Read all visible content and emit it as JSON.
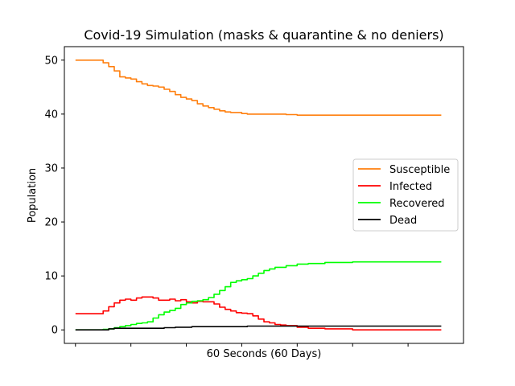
{
  "chart_data": {
    "type": "line",
    "title": "Covid-19 Simulation (masks & quarantine & no deniers)",
    "xlabel": "60 Seconds (60 Days)",
    "ylabel": "Population",
    "xlim": [
      -2,
      70
    ],
    "ylim": [
      -2.5,
      52.5
    ],
    "yticks": [
      0,
      10,
      20,
      30,
      40,
      50
    ],
    "xticks": [
      0,
      10,
      20,
      30,
      40,
      50,
      60
    ],
    "legend": "center-right",
    "series": [
      {
        "name": "Susceptible",
        "color": "#ff7f0e",
        "points": [
          [
            0,
            50
          ],
          [
            4,
            50
          ],
          [
            5,
            49.5
          ],
          [
            6,
            48.8
          ],
          [
            7,
            48
          ],
          [
            8,
            46.9
          ],
          [
            9,
            46.7
          ],
          [
            10,
            46.5
          ],
          [
            11,
            46
          ],
          [
            12,
            45.6
          ],
          [
            13,
            45.3
          ],
          [
            14,
            45.2
          ],
          [
            15,
            45
          ],
          [
            16,
            44.6
          ],
          [
            17,
            44.2
          ],
          [
            18,
            43.6
          ],
          [
            19,
            43.1
          ],
          [
            20,
            42.8
          ],
          [
            21,
            42.5
          ],
          [
            22,
            41.9
          ],
          [
            23,
            41.5
          ],
          [
            24,
            41.2
          ],
          [
            25,
            40.9
          ],
          [
            26,
            40.6
          ],
          [
            27,
            40.4
          ],
          [
            28,
            40.3
          ],
          [
            29,
            40.3
          ],
          [
            30,
            40.1
          ],
          [
            31,
            40
          ],
          [
            32,
            40
          ],
          [
            35,
            40
          ],
          [
            38,
            39.9
          ],
          [
            40,
            39.8
          ],
          [
            45,
            39.8
          ],
          [
            50,
            39.8
          ],
          [
            60,
            39.8
          ],
          [
            66,
            39.8
          ]
        ]
      },
      {
        "name": "Infected",
        "color": "#ff0000",
        "points": [
          [
            0,
            3
          ],
          [
            4,
            3
          ],
          [
            5,
            3.5
          ],
          [
            6,
            4.3
          ],
          [
            7,
            5
          ],
          [
            8,
            5.5
          ],
          [
            9,
            5.7
          ],
          [
            10,
            5.5
          ],
          [
            11,
            5.9
          ],
          [
            12,
            6.1
          ],
          [
            13,
            6.1
          ],
          [
            14,
            5.9
          ],
          [
            15,
            5.5
          ],
          [
            16,
            5.5
          ],
          [
            17,
            5.7
          ],
          [
            18,
            5.4
          ],
          [
            19,
            5.6
          ],
          [
            20,
            5.2
          ],
          [
            21,
            5
          ],
          [
            22,
            5.3
          ],
          [
            23,
            5.2
          ],
          [
            24,
            5.2
          ],
          [
            25,
            4.8
          ],
          [
            26,
            4.2
          ],
          [
            27,
            3.8
          ],
          [
            28,
            3.5
          ],
          [
            29,
            3.2
          ],
          [
            30,
            3.1
          ],
          [
            31,
            3
          ],
          [
            32,
            2.6
          ],
          [
            33,
            2
          ],
          [
            34,
            1.5
          ],
          [
            35,
            1.3
          ],
          [
            36,
            1
          ],
          [
            37,
            0.9
          ],
          [
            38,
            0.8
          ],
          [
            40,
            0.5
          ],
          [
            42,
            0.3
          ],
          [
            45,
            0.2
          ],
          [
            48,
            0.2
          ],
          [
            50,
            0
          ],
          [
            60,
            0
          ],
          [
            66,
            0
          ]
        ]
      },
      {
        "name": "Recovered",
        "color": "#00ff00",
        "points": [
          [
            0,
            0
          ],
          [
            4,
            0
          ],
          [
            5,
            0.1
          ],
          [
            6,
            0.2
          ],
          [
            7,
            0.4
          ],
          [
            8,
            0.6
          ],
          [
            9,
            0.8
          ],
          [
            10,
            1
          ],
          [
            11,
            1.2
          ],
          [
            12,
            1.3
          ],
          [
            13,
            1.5
          ],
          [
            14,
            2.2
          ],
          [
            15,
            2.8
          ],
          [
            16,
            3.3
          ],
          [
            17,
            3.6
          ],
          [
            18,
            4
          ],
          [
            19,
            4.7
          ],
          [
            20,
            5
          ],
          [
            21,
            5.3
          ],
          [
            22,
            5.4
          ],
          [
            23,
            5.6
          ],
          [
            24,
            6
          ],
          [
            25,
            6.6
          ],
          [
            26,
            7.3
          ],
          [
            27,
            8
          ],
          [
            28,
            8.8
          ],
          [
            29,
            9.1
          ],
          [
            30,
            9.3
          ],
          [
            31,
            9.5
          ],
          [
            32,
            10
          ],
          [
            33,
            10.5
          ],
          [
            34,
            11
          ],
          [
            35,
            11.3
          ],
          [
            36,
            11.6
          ],
          [
            38,
            11.9
          ],
          [
            40,
            12.2
          ],
          [
            42,
            12.3
          ],
          [
            45,
            12.5
          ],
          [
            50,
            12.6
          ],
          [
            55,
            12.6
          ],
          [
            60,
            12.6
          ],
          [
            66,
            12.6
          ]
        ]
      },
      {
        "name": "Dead",
        "color": "#000000",
        "points": [
          [
            0,
            0
          ],
          [
            4,
            0
          ],
          [
            6,
            0.2
          ],
          [
            7,
            0.3
          ],
          [
            10,
            0.3
          ],
          [
            16,
            0.4
          ],
          [
            17,
            0.4
          ],
          [
            18,
            0.5
          ],
          [
            20,
            0.5
          ],
          [
            21,
            0.6
          ],
          [
            30,
            0.6
          ],
          [
            31,
            0.7
          ],
          [
            40,
            0.7
          ],
          [
            50,
            0.7
          ],
          [
            60,
            0.7
          ],
          [
            66,
            0.7
          ]
        ]
      }
    ]
  }
}
